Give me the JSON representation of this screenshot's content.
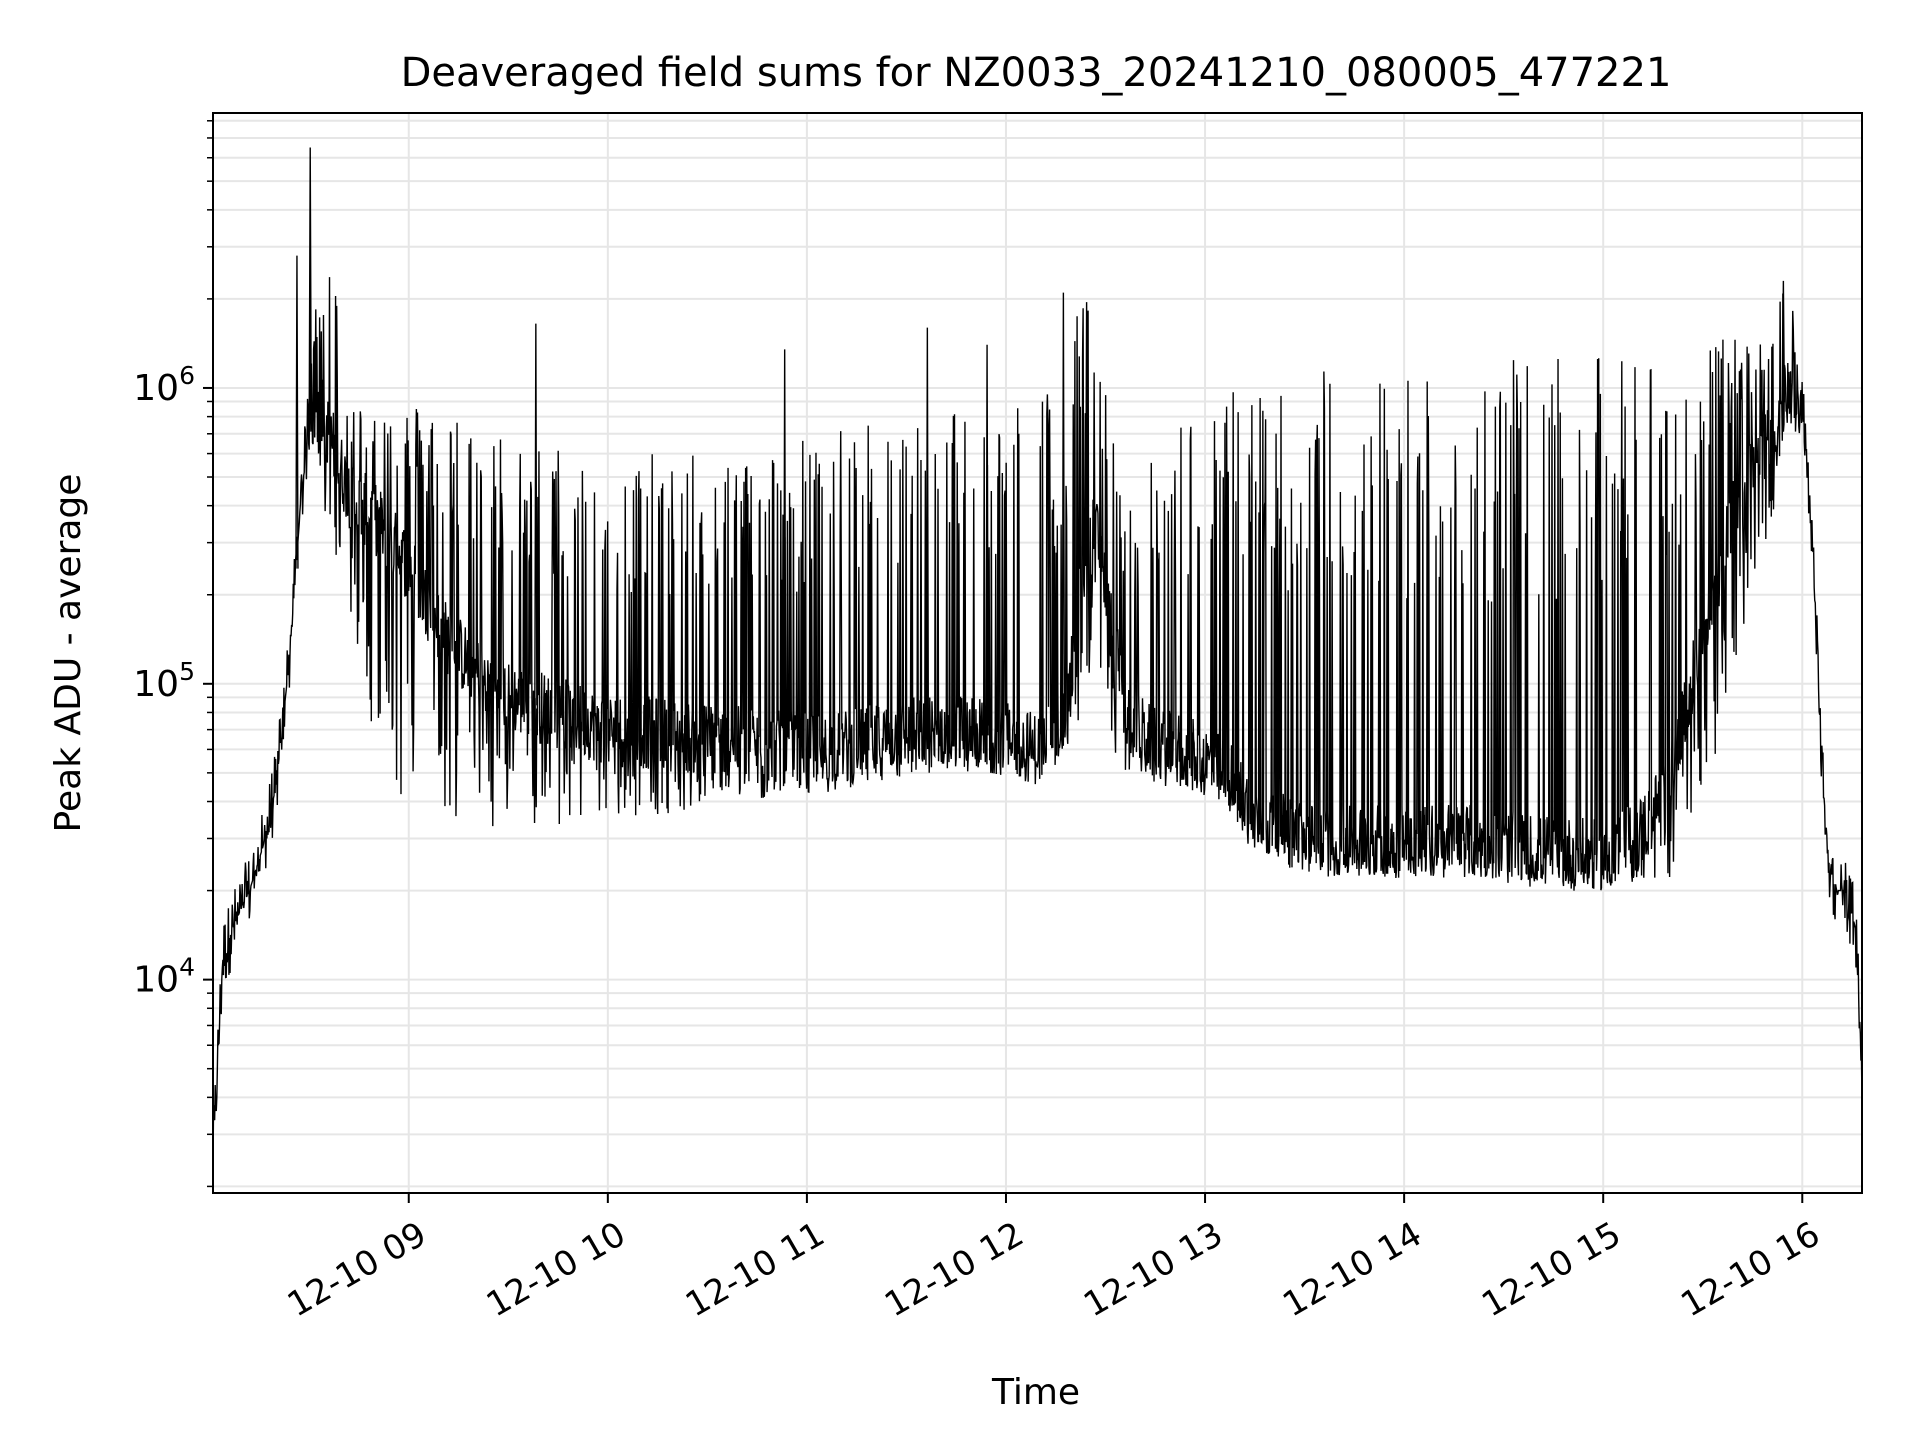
{
  "chart_data": {
    "type": "line",
    "title": "Deaveraged field sums for NZ0033_20241210_080005_477221",
    "xlabel": "Time",
    "ylabel": "Peak ADU - average",
    "yscale": "log",
    "ylim": [
      1900,
      8500000
    ],
    "xlim": [
      "2024-12-10 08:01",
      "2024-12-10 16:18"
    ],
    "grid": true,
    "line_color": "#000000",
    "grid_color": "#e6e6e6",
    "x_ticks": [
      {
        "value": "2024-12-10 09:00",
        "label": "12-10 09"
      },
      {
        "value": "2024-12-10 10:00",
        "label": "12-10 10"
      },
      {
        "value": "2024-12-10 11:00",
        "label": "12-10 11"
      },
      {
        "value": "2024-12-10 12:00",
        "label": "12-10 12"
      },
      {
        "value": "2024-12-10 13:00",
        "label": "12-10 13"
      },
      {
        "value": "2024-12-10 14:00",
        "label": "12-10 14"
      },
      {
        "value": "2024-12-10 15:00",
        "label": "12-10 15"
      },
      {
        "value": "2024-12-10 16:00",
        "label": "12-10 16"
      }
    ],
    "y_ticks": [
      {
        "value": 10000,
        "base": "10",
        "exp": "4"
      },
      {
        "value": 100000,
        "base": "10",
        "exp": "5"
      },
      {
        "value": 1000000,
        "base": "10",
        "exp": "6"
      }
    ],
    "series": [
      {
        "name": "",
        "x": [
          "2024-12-10 08:01",
          "2024-12-10 08:04",
          "2024-12-10 08:08",
          "2024-12-10 08:12",
          "2024-12-10 08:16",
          "2024-12-10 08:20",
          "2024-12-10 08:24",
          "2024-12-10 08:27",
          "2024-12-10 08:30",
          "2024-12-10 08:33",
          "2024-12-10 08:36",
          "2024-12-10 08:39",
          "2024-12-10 08:42",
          "2024-12-10 08:45",
          "2024-12-10 08:48",
          "2024-12-10 08:51",
          "2024-12-10 08:55",
          "2024-12-10 09:00",
          "2024-12-10 09:10",
          "2024-12-10 09:20",
          "2024-12-10 09:30",
          "2024-12-10 09:45",
          "2024-12-10 10:00",
          "2024-12-10 10:15",
          "2024-12-10 10:30",
          "2024-12-10 10:45",
          "2024-12-10 11:00",
          "2024-12-10 11:15",
          "2024-12-10 11:30",
          "2024-12-10 11:45",
          "2024-12-10 12:00",
          "2024-12-10 12:10",
          "2024-12-10 12:18",
          "2024-12-10 12:22",
          "2024-12-10 12:27",
          "2024-12-10 12:32",
          "2024-12-10 12:36",
          "2024-12-10 12:40",
          "2024-12-10 12:45",
          "2024-12-10 12:52",
          "2024-12-10 13:00",
          "2024-12-10 13:08",
          "2024-12-10 13:15",
          "2024-12-10 13:30",
          "2024-12-10 13:45",
          "2024-12-10 14:00",
          "2024-12-10 14:15",
          "2024-12-10 14:30",
          "2024-12-10 14:45",
          "2024-12-10 15:00",
          "2024-12-10 15:10",
          "2024-12-10 15:20",
          "2024-12-10 15:30",
          "2024-12-10 15:40",
          "2024-12-10 15:50",
          "2024-12-10 15:55",
          "2024-12-10 16:00",
          "2024-12-10 16:03",
          "2024-12-10 16:06",
          "2024-12-10 16:08",
          "2024-12-10 16:10",
          "2024-12-10 16:13",
          "2024-12-10 16:16",
          "2024-12-10 16:18"
        ],
        "y": [
          2600,
          12000,
          16000,
          20000,
          28000,
          45000,
          120000,
          350000,
          800000,
          900000,
          700000,
          550000,
          450000,
          400000,
          380000,
          350000,
          300000,
          250000,
          150000,
          110000,
          90000,
          80000,
          70000,
          68000,
          65000,
          62000,
          60000,
          62000,
          68000,
          70000,
          65000,
          60000,
          75000,
          200000,
          350000,
          150000,
          80000,
          70000,
          62000,
          60000,
          55000,
          48000,
          35000,
          30000,
          29000,
          30000,
          30000,
          28000,
          27000,
          26000,
          30000,
          45000,
          150000,
          400000,
          700000,
          950000,
          900000,
          300000,
          50000,
          25000,
          20000,
          20000,
          15000,
          5000
        ],
        "upper": [
          2600,
          12000,
          16000,
          20000,
          28000,
          45000,
          120000,
          350000,
          1500000,
          2500000,
          3500000,
          1800000,
          900000,
          900000,
          900000,
          900000,
          900000,
          900000,
          900000,
          800000,
          700000,
          650000,
          600000,
          600000,
          600000,
          650000,
          700000,
          750000,
          800000,
          900000,
          1000000,
          1000000,
          1100000,
          2000000,
          1900000,
          700000,
          500000,
          500000,
          600000,
          800000,
          900000,
          1000000,
          1150000,
          1200000,
          1200000,
          1250000,
          1250000,
          1250000,
          1250000,
          1300000,
          1300000,
          1350000,
          1400000,
          1500000,
          1700000,
          2200000,
          1500000,
          300000,
          50000,
          25000,
          20000,
          20000,
          15000,
          5000
        ],
        "lower": [
          2600,
          12000,
          16000,
          20000,
          28000,
          45000,
          120000,
          350000,
          700000,
          500000,
          300000,
          250000,
          150000,
          100000,
          70000,
          55000,
          45000,
          38000,
          34000,
          33000,
          33000,
          33000,
          34000,
          36000,
          38000,
          40000,
          42000,
          44000,
          46000,
          48000,
          50000,
          52000,
          56000,
          70000,
          120000,
          60000,
          50000,
          48000,
          46000,
          44000,
          42000,
          38000,
          28000,
          24000,
          22000,
          22000,
          22000,
          22000,
          21000,
          20000,
          21000,
          22000,
          35000,
          120000,
          300000,
          700000,
          700000,
          300000,
          50000,
          25000,
          20000,
          20000,
          15000,
          5000
        ]
      }
    ],
    "spikes": [
      {
        "x": "2024-12-10 08:30",
        "y": 6500000
      },
      {
        "x": "2024-12-10 08:26",
        "y": 2800000
      },
      {
        "x": "2024-12-10 09:38",
        "y": 1650000
      },
      {
        "x": "2024-12-10 10:53",
        "y": 1350000
      },
      {
        "x": "2024-12-10 11:36",
        "y": 1600000
      },
      {
        "x": "2024-12-10 11:54",
        "y": 1400000
      },
      {
        "x": "2024-12-10 12:17",
        "y": 2100000
      },
      {
        "x": "2024-12-10 12:24",
        "y": 1950000
      },
      {
        "x": "2024-12-10 15:54",
        "y": 2300000
      }
    ]
  }
}
